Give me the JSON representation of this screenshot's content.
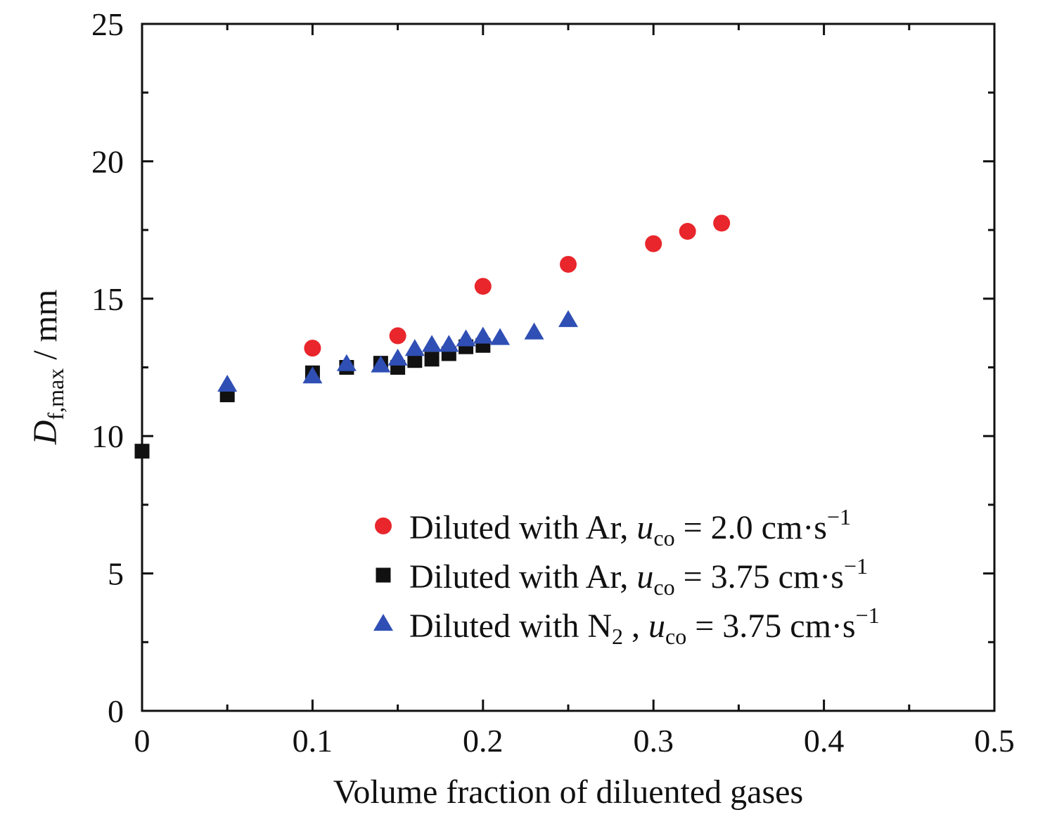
{
  "chart_data": {
    "type": "scatter",
    "xlabel": "Volume fraction of diluented gases",
    "ylabel": {
      "main": "D",
      "sub": "f,max",
      "unit": " / mm"
    },
    "xlim": [
      0,
      0.5
    ],
    "ylim": [
      0,
      25
    ],
    "x_ticks": [
      0,
      0.1,
      0.2,
      0.3,
      0.4,
      0.5
    ],
    "x_tick_labels": [
      "0",
      "0.1",
      "0.2",
      "0.3",
      "0.4",
      "0.5"
    ],
    "y_ticks": [
      0,
      5,
      10,
      15,
      20,
      25
    ],
    "y_tick_labels": [
      "0",
      "5",
      "10",
      "15",
      "20",
      "25"
    ],
    "grid": false,
    "legend_position": "bottom-right",
    "series": [
      {
        "name": "Diluted with Ar, u_co = 2.0 cm·s⁻¹",
        "legend": {
          "prefix": "Diluted with Ar, ",
          "var": "u",
          "var_sub": "co",
          "value": " = 2.0 cm·s",
          "sup": "−1"
        },
        "marker": "circle",
        "color": "#e8262b",
        "points": [
          [
            0.1,
            13.2
          ],
          [
            0.15,
            13.65
          ],
          [
            0.2,
            15.45
          ],
          [
            0.25,
            16.25
          ],
          [
            0.3,
            17.0
          ],
          [
            0.32,
            17.45
          ],
          [
            0.34,
            17.75
          ]
        ]
      },
      {
        "name": "Diluted with Ar, u_co = 3.75 cm·s⁻¹",
        "legend": {
          "prefix": "Diluted with Ar, ",
          "var": "u",
          "var_sub": "co",
          "value": " = 3.75 cm·s",
          "sup": "−1"
        },
        "marker": "square",
        "color": "#111111",
        "points": [
          [
            0.0,
            9.45
          ],
          [
            0.05,
            11.5
          ],
          [
            0.1,
            12.3
          ],
          [
            0.12,
            12.5
          ],
          [
            0.14,
            12.65
          ],
          [
            0.15,
            12.5
          ],
          [
            0.16,
            12.75
          ],
          [
            0.17,
            12.8
          ],
          [
            0.18,
            13.0
          ],
          [
            0.19,
            13.25
          ],
          [
            0.2,
            13.3
          ]
        ]
      },
      {
        "name": "Diluted with N₂, u_co = 3.75 cm·s⁻¹",
        "legend": {
          "prefix": "Diluted with N",
          "prefix_sub": "2",
          "prefix_after": " , ",
          "var": "u",
          "var_sub": "co",
          "value": " = 3.75 cm·s",
          "sup": "−1"
        },
        "marker": "triangle",
        "color": "#2f4fb5",
        "points": [
          [
            0.05,
            11.85
          ],
          [
            0.1,
            12.15
          ],
          [
            0.12,
            12.6
          ],
          [
            0.14,
            12.55
          ],
          [
            0.15,
            12.8
          ],
          [
            0.16,
            13.15
          ],
          [
            0.17,
            13.3
          ],
          [
            0.18,
            13.3
          ],
          [
            0.19,
            13.5
          ],
          [
            0.2,
            13.6
          ],
          [
            0.21,
            13.55
          ],
          [
            0.23,
            13.75
          ],
          [
            0.25,
            14.2
          ]
        ]
      }
    ]
  }
}
